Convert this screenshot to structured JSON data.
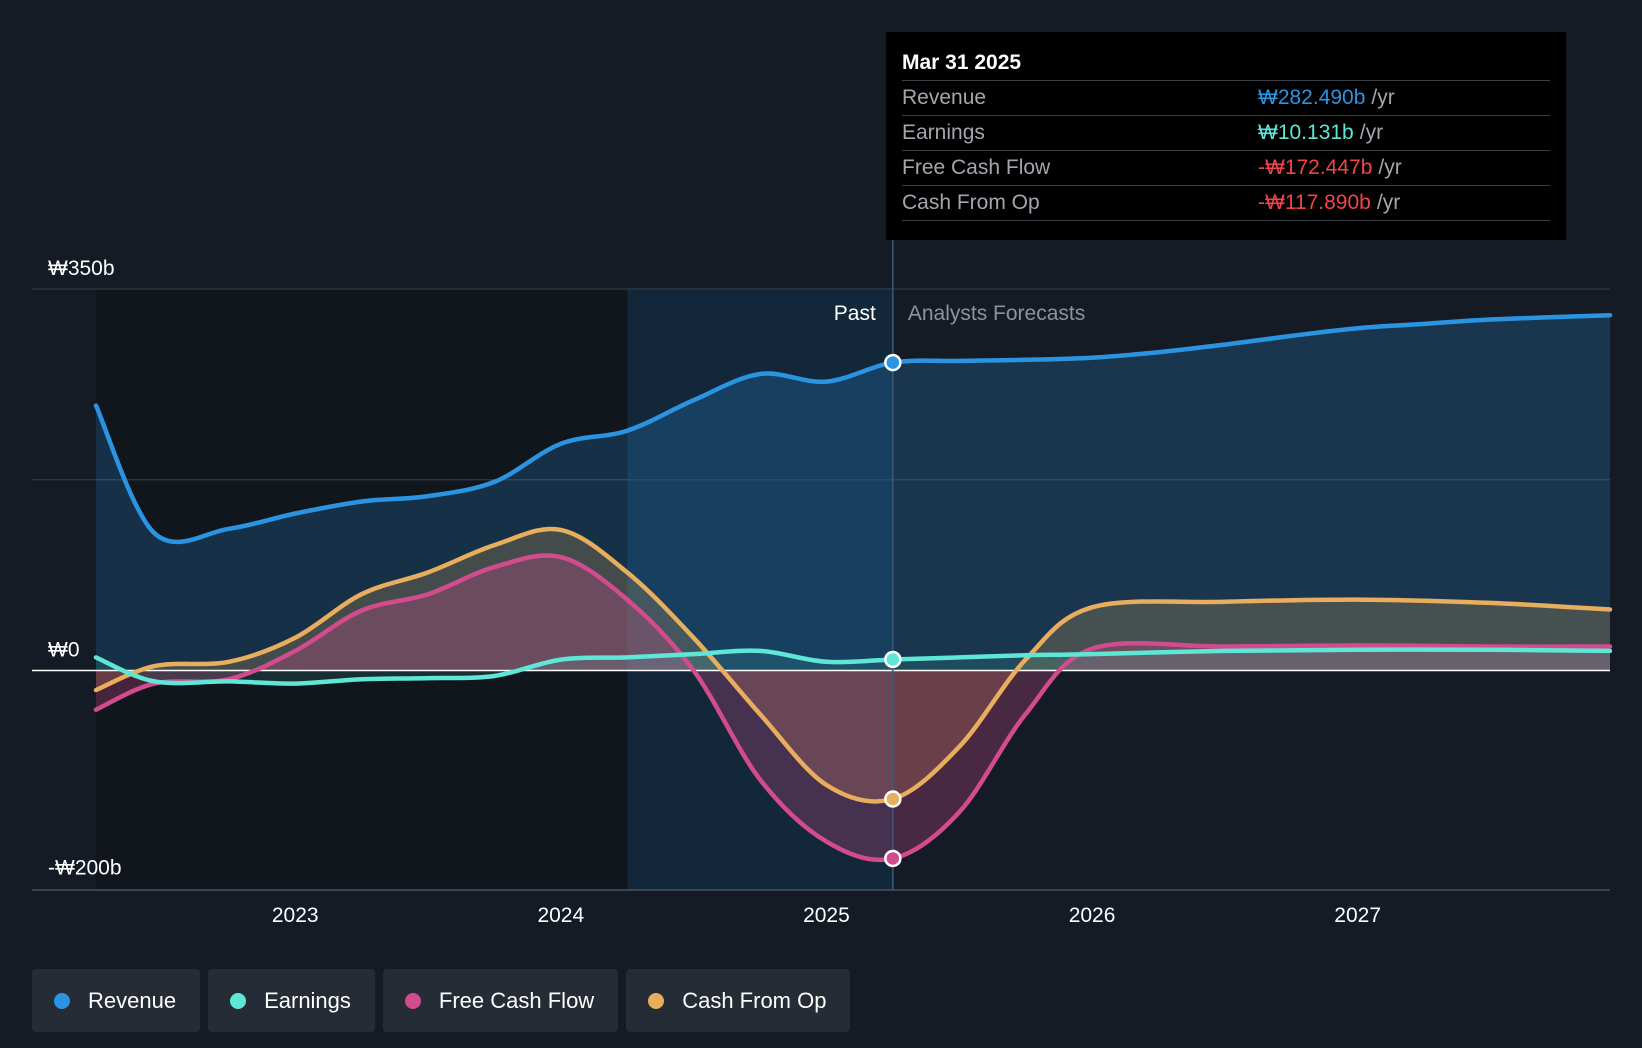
{
  "chart_data": {
    "type": "area",
    "y_unit": "₩ billions",
    "ylim": [
      -200,
      350
    ],
    "xlim": [
      2022.25,
      2027.95
    ],
    "y_ticks": [
      {
        "value": 350,
        "label": "₩350b"
      },
      {
        "value": 0,
        "label": "₩0"
      },
      {
        "value": -200,
        "label": "-₩200b"
      }
    ],
    "x_ticks": [
      {
        "value": 2023,
        "label": "2023"
      },
      {
        "value": 2024,
        "label": "2024"
      },
      {
        "value": 2025,
        "label": "2025"
      },
      {
        "value": 2026,
        "label": "2026"
      },
      {
        "value": 2027,
        "label": "2027"
      }
    ],
    "grid": true,
    "past_label": "Past",
    "forecast_label": "Analysts Forecasts",
    "divider_x": 2025.25,
    "highlight_start_x": 2024.25,
    "series": [
      {
        "name": "Revenue",
        "color": "#2b94e2",
        "x": [
          2022.25,
          2022.47,
          2022.75,
          2023.0,
          2023.25,
          2023.5,
          2023.75,
          2024.0,
          2024.25,
          2024.5,
          2024.75,
          2025.0,
          2025.25,
          2025.5,
          2025.75,
          2026.0,
          2026.25,
          2026.5,
          2026.75,
          2027.0,
          2027.25,
          2027.5,
          2027.95
        ],
        "y": [
          243,
          126,
          130,
          144,
          155,
          160,
          173,
          208,
          220,
          248,
          272,
          265,
          282.49,
          284,
          285,
          287,
          292,
          299,
          307,
          314,
          318,
          322,
          326
        ]
      },
      {
        "name": "Earnings",
        "color": "#5ee6d6",
        "x": [
          2022.25,
          2022.47,
          2022.75,
          2023.0,
          2023.25,
          2023.5,
          2023.75,
          2024.0,
          2024.25,
          2024.5,
          2024.75,
          2025.0,
          2025.25,
          2025.5,
          2025.75,
          2026.0,
          2026.5,
          2027.0,
          2027.5,
          2027.95
        ],
        "y": [
          12,
          -10,
          -10,
          -12,
          -8,
          -7,
          -5,
          10,
          12,
          15,
          18,
          8,
          10.131,
          12,
          14,
          15,
          18,
          19,
          19,
          18
        ]
      },
      {
        "name": "Free Cash Flow",
        "color": "#d24b8d",
        "x": [
          2022.25,
          2022.47,
          2022.75,
          2023.0,
          2023.25,
          2023.5,
          2023.75,
          2024.0,
          2024.25,
          2024.5,
          2024.75,
          2025.0,
          2025.25,
          2025.5,
          2025.75,
          2026.0,
          2026.5,
          2027.0,
          2027.5,
          2027.95
        ],
        "y": [
          -36,
          -12,
          -8,
          18,
          55,
          70,
          95,
          104,
          65,
          0,
          -100,
          -157,
          -172.447,
          -130,
          -40,
          20,
          22,
          23,
          22,
          22
        ]
      },
      {
        "name": "Cash From Op",
        "color": "#e8ad5d",
        "x": [
          2022.25,
          2022.47,
          2022.75,
          2023.0,
          2023.25,
          2023.5,
          2023.75,
          2024.0,
          2024.25,
          2024.5,
          2024.75,
          2025.0,
          2025.25,
          2025.5,
          2025.75,
          2026.0,
          2026.5,
          2027.0,
          2027.5,
          2027.95
        ],
        "y": [
          -18,
          4,
          8,
          30,
          70,
          90,
          115,
          129,
          90,
          30,
          -40,
          -105,
          -117.89,
          -70,
          10,
          58,
          63,
          65,
          62,
          56
        ]
      }
    ]
  },
  "tooltip": {
    "date": "Mar 31 2025",
    "rows": [
      {
        "label": "Revenue",
        "value": "₩282.490b",
        "unit": "/yr",
        "color": "#2b94e2"
      },
      {
        "label": "Earnings",
        "value": "₩10.131b",
        "unit": "/yr",
        "color": "#5ee6d6"
      },
      {
        "label": "Free Cash Flow",
        "value": "-₩172.447b",
        "unit": "/yr",
        "color": "#f0444c"
      },
      {
        "label": "Cash From Op",
        "value": "-₩117.890b",
        "unit": "/yr",
        "color": "#f0444c"
      }
    ]
  },
  "legend": [
    {
      "label": "Revenue",
      "color": "#2b94e2"
    },
    {
      "label": "Earnings",
      "color": "#5ee6d6"
    },
    {
      "label": "Free Cash Flow",
      "color": "#d24b8d"
    },
    {
      "label": "Cash From Op",
      "color": "#e8ad5d"
    }
  ]
}
